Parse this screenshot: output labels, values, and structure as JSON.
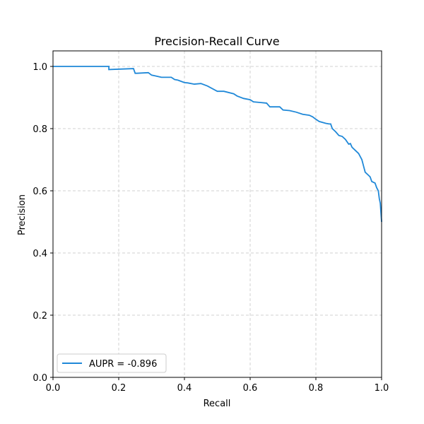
{
  "chart_data": {
    "type": "line",
    "title": "Precision-Recall Curve",
    "xlabel": "Recall",
    "ylabel": "Precision",
    "xlim": [
      0.0,
      1.0
    ],
    "ylim": [
      0.0,
      1.05
    ],
    "xticks": [
      "0.0",
      "0.2",
      "0.4",
      "0.6",
      "0.8",
      "1.0"
    ],
    "yticks": [
      "0.0",
      "0.2",
      "0.4",
      "0.6",
      "0.8",
      "1.0"
    ],
    "grid": true,
    "grid_style": "dashed",
    "legend_position": "lower-left",
    "legend_label": "AUPR = -0.896",
    "series_color": "#1f88d8",
    "series": [
      {
        "name": "AUPR = -0.896",
        "x": [
          0.0,
          0.17,
          0.17,
          0.245,
          0.25,
          0.255,
          0.29,
          0.3,
          0.31,
          0.33,
          0.36,
          0.37,
          0.38,
          0.4,
          0.41,
          0.43,
          0.45,
          0.47,
          0.5,
          0.52,
          0.55,
          0.56,
          0.58,
          0.6,
          0.61,
          0.63,
          0.65,
          0.66,
          0.69,
          0.7,
          0.72,
          0.74,
          0.76,
          0.78,
          0.79,
          0.8,
          0.81,
          0.83,
          0.84,
          0.845,
          0.85,
          0.86,
          0.87,
          0.88,
          0.89,
          0.9,
          0.905,
          0.91,
          0.92,
          0.93,
          0.94,
          0.945,
          0.95,
          0.96,
          0.965,
          0.97,
          0.98,
          0.985,
          0.99,
          0.993,
          0.996,
          1.0
        ],
        "y": [
          1.0,
          1.0,
          0.99,
          0.993,
          0.978,
          0.978,
          0.98,
          0.972,
          0.97,
          0.965,
          0.965,
          0.958,
          0.956,
          0.948,
          0.947,
          0.943,
          0.945,
          0.937,
          0.92,
          0.92,
          0.912,
          0.905,
          0.897,
          0.893,
          0.886,
          0.884,
          0.882,
          0.87,
          0.87,
          0.86,
          0.858,
          0.853,
          0.846,
          0.843,
          0.838,
          0.83,
          0.823,
          0.817,
          0.815,
          0.815,
          0.8,
          0.79,
          0.778,
          0.775,
          0.765,
          0.75,
          0.752,
          0.74,
          0.73,
          0.72,
          0.7,
          0.68,
          0.66,
          0.65,
          0.645,
          0.63,
          0.625,
          0.61,
          0.6,
          0.575,
          0.56,
          0.5
        ]
      }
    ]
  }
}
